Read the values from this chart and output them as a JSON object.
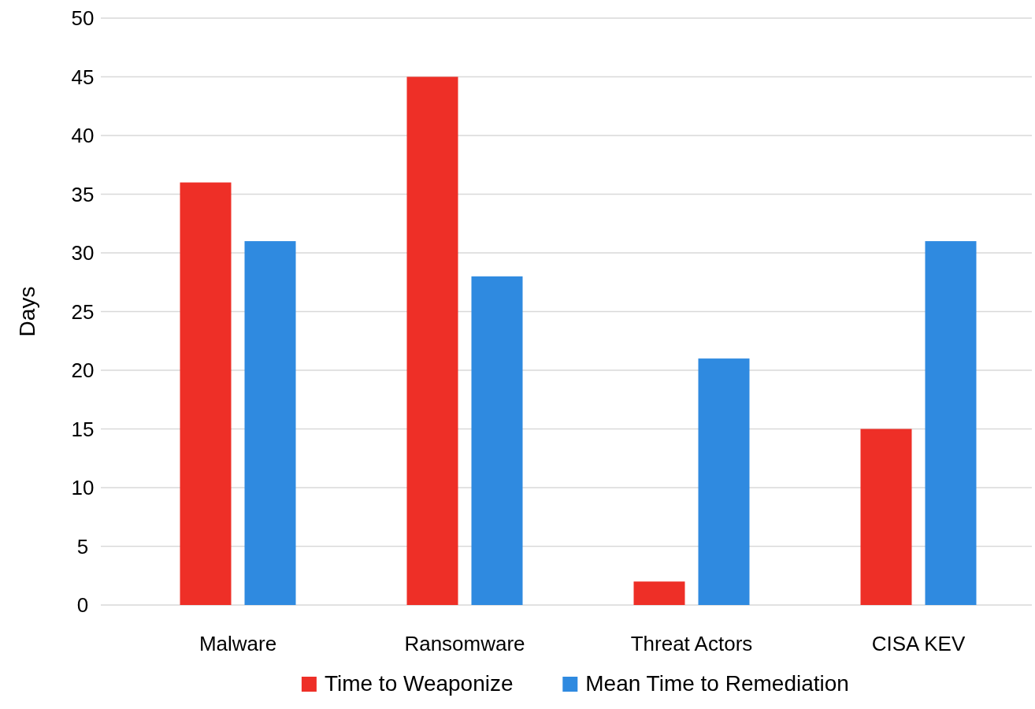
{
  "chart_data": {
    "type": "bar",
    "ylabel": "Days",
    "categories": [
      "Malware",
      "Ransomware",
      "Threat Actors",
      "CISA KEV"
    ],
    "series": [
      {
        "name": "Time to Weaponize",
        "color": "#ee2f27",
        "values": [
          36,
          45,
          2,
          15
        ]
      },
      {
        "name": "Mean Time to Remediation",
        "color": "#2f8ae0",
        "values": [
          31,
          28,
          21,
          31
        ]
      }
    ],
    "ylim": [
      0,
      50
    ],
    "yticks": [
      0,
      5,
      10,
      15,
      20,
      25,
      30,
      35,
      40,
      45,
      50
    ],
    "grid": "y",
    "legend": "bottom"
  }
}
